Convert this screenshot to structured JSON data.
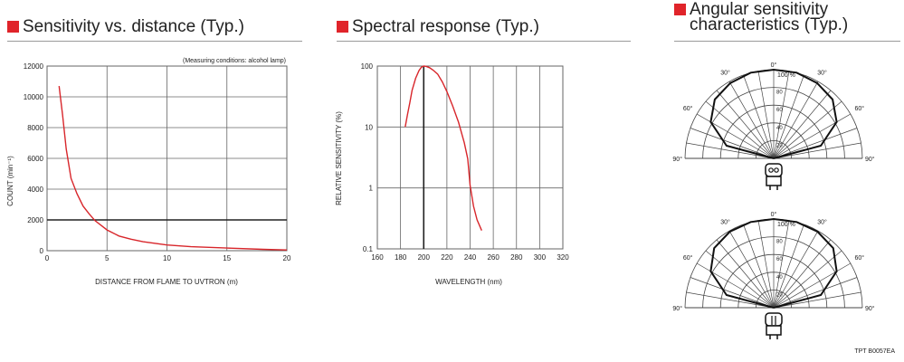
{
  "titles": {
    "sensitivity": "Sensitivity vs. distance (Typ.)",
    "spectral": "Spectral response (Typ.)",
    "angular_line1": "Angular sensitivity",
    "angular_line2": "characteristics (Typ.)"
  },
  "doc_code": "TPT B0057EA",
  "colors": {
    "accent": "#e0242a",
    "curve": "#d8262b",
    "grid": "#666666"
  },
  "chart_data": [
    {
      "type": "line",
      "title": "Sensitivity vs. distance (Typ.)",
      "annotation": "(Measuring conditions: alcohol lamp)",
      "xlabel": "DISTANCE FROM FLAME TO UVTRON (m)",
      "ylabel": "COUNT (min⁻¹)",
      "xlim": [
        0,
        20
      ],
      "ylim": [
        0,
        12000
      ],
      "xticks": [
        0,
        5,
        10,
        15,
        20
      ],
      "yticks": [
        0,
        2000,
        4000,
        6000,
        8000,
        10000,
        12000
      ],
      "xtick_labels": [
        "0",
        "5",
        "10",
        "15",
        "20"
      ],
      "ytick_labels": [
        "0",
        "2000",
        "4000",
        "6000",
        "8000",
        "10000",
        "12000"
      ],
      "reference_line_y": 2000,
      "grid": true,
      "x": [
        1,
        1.3,
        1.6,
        2,
        2.5,
        3,
        3.5,
        4,
        5,
        6,
        7,
        8,
        10,
        12,
        15,
        18,
        20
      ],
      "y": [
        10700,
        8800,
        6600,
        4700,
        3700,
        2900,
        2400,
        1950,
        1350,
        950,
        750,
        580,
        370,
        260,
        170,
        90,
        50
      ]
    },
    {
      "type": "line",
      "title": "Spectral response (Typ.)",
      "xlabel": "WAVELENGTH (nm)",
      "ylabel": "RELATIVE SENSITIVITY (%)",
      "xlim": [
        160,
        320
      ],
      "ylim": [
        0.1,
        100
      ],
      "y_scale": "log",
      "xticks": [
        160,
        180,
        200,
        220,
        240,
        260,
        280,
        300,
        320
      ],
      "yticks": [
        0.1,
        1,
        10,
        100
      ],
      "xtick_labels": [
        "160",
        "180",
        "200",
        "220",
        "240",
        "260",
        "280",
        "300",
        "320"
      ],
      "ytick_labels": [
        "0.1",
        "1",
        "10",
        "100"
      ],
      "reference_line_x": 200,
      "grid": true,
      "x": [
        184,
        186,
        188,
        190,
        193,
        196,
        198,
        200,
        202,
        205,
        208,
        212,
        216,
        220,
        225,
        230,
        235,
        238,
        240,
        243,
        246,
        250
      ],
      "y": [
        10,
        16,
        25,
        40,
        63,
        85,
        96,
        100,
        99,
        94,
        86,
        74,
        55,
        38,
        22,
        12,
        5.5,
        3,
        1.1,
        0.5,
        0.3,
        0.2
      ]
    },
    {
      "type": "polar",
      "title": "Angular sensitivity characteristics (Typ.)",
      "rlabel_unit": "100 %",
      "radial_ticks": [
        20,
        40,
        60,
        80,
        100
      ],
      "angle_labels": [
        "0°",
        "30°",
        "30°",
        "60°",
        "60°",
        "90°",
        "90°"
      ],
      "angles_deg": [
        -90,
        -75,
        -60,
        -45,
        -30,
        -15,
        0,
        15,
        30,
        45,
        60,
        75,
        90
      ],
      "plots": [
        {
          "orientation": "front",
          "r": [
            0,
            55,
            82,
            94,
            98,
            100,
            100,
            100,
            98,
            94,
            82,
            55,
            0
          ]
        },
        {
          "orientation": "side",
          "r": [
            0,
            55,
            82,
            95,
            99,
            100,
            100,
            100,
            99,
            95,
            82,
            55,
            0
          ]
        }
      ]
    }
  ]
}
